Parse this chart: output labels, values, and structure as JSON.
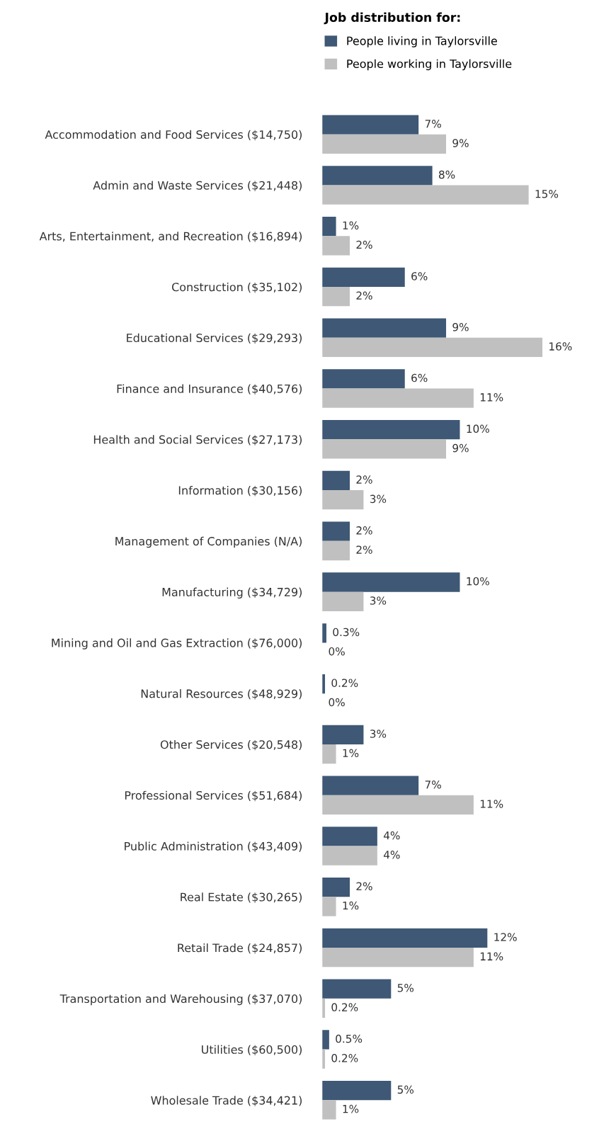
{
  "chart_data": {
    "type": "bar",
    "orientation": "horizontal",
    "legend_title": "Job distribution for:",
    "legend": "top",
    "categories": [
      "Accommodation and Food Services ($14,750)",
      "Admin and Waste Services ($21,448)",
      "Arts, Entertainment, and Recreation ($16,894)",
      "Construction ($35,102)",
      "Educational Services ($29,293)",
      "Finance and Insurance ($40,576)",
      "Health and Social Services ($27,173)",
      "Information ($30,156)",
      "Management of Companies (N/A)",
      "Manufacturing ($34,729)",
      "Mining and Oil and Gas Extraction ($76,000)",
      "Natural Resources ($48,929)",
      "Other Services ($20,548)",
      "Professional Services ($51,684)",
      "Public Administration ($43,409)",
      "Real Estate ($30,265)",
      "Retail Trade ($24,857)",
      "Transportation and Warehousing ($37,070)",
      "Utilities ($60,500)",
      "Wholesale Trade ($34,421)"
    ],
    "series": [
      {
        "name": "People living in Taylorsville",
        "color": "#3e5875",
        "values": [
          7,
          8,
          1,
          6,
          9,
          6,
          10,
          2,
          2,
          10,
          0.3,
          0.2,
          3,
          7,
          4,
          2,
          12,
          5,
          0.5,
          5
        ],
        "value_labels": [
          "7%",
          "8%",
          "1%",
          "6%",
          "9%",
          "6%",
          "10%",
          "2%",
          "2%",
          "10%",
          "0.3%",
          "0.2%",
          "3%",
          "7%",
          "4%",
          "2%",
          "12%",
          "5%",
          "0.5%",
          "5%"
        ]
      },
      {
        "name": "People working in Taylorsville",
        "color": "#c0c0c0",
        "values": [
          9,
          15,
          2,
          2,
          16,
          11,
          9,
          3,
          2,
          3,
          0,
          0,
          1,
          11,
          4,
          1,
          11,
          0.2,
          0.2,
          1
        ],
        "value_labels": [
          "9%",
          "15%",
          "2%",
          "2%",
          "16%",
          "11%",
          "9%",
          "3%",
          "2%",
          "3%",
          "0%",
          "0%",
          "1%",
          "11%",
          "4%",
          "1%",
          "11%",
          "0.2%",
          "0.2%",
          "1%"
        ]
      }
    ],
    "grid": false
  }
}
